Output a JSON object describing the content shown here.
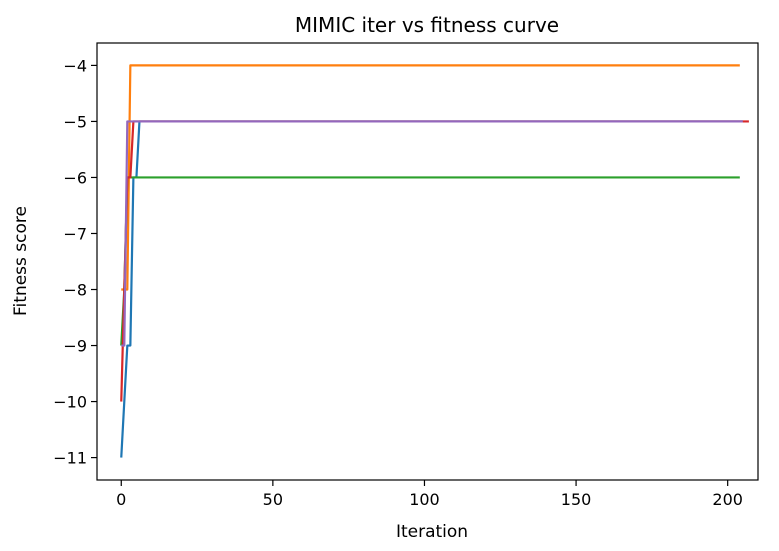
{
  "chart_data": {
    "type": "line",
    "title": "MIMIC iter vs fitness curve",
    "xlabel": "Iteration",
    "ylabel": "Fitness score",
    "xlim": [
      -8,
      210
    ],
    "ylim": [
      -11.4,
      -3.6
    ],
    "xticks": [
      0,
      50,
      100,
      150,
      200
    ],
    "xtick_labels": [
      "0",
      "50",
      "100",
      "150",
      "200"
    ],
    "yticks": [
      -4,
      -5,
      -6,
      -7,
      -8,
      -9,
      -10,
      -11
    ],
    "ytick_labels": [
      "−4",
      "−5",
      "−6",
      "−7",
      "−8",
      "−9",
      "−10",
      "−11"
    ],
    "grid": false,
    "series": [
      {
        "color": "#1f77b4",
        "points": [
          [
            0,
            -11
          ],
          [
            1,
            -10
          ],
          [
            2,
            -9
          ],
          [
            3,
            -9
          ],
          [
            4,
            -6
          ],
          [
            5,
            -6
          ],
          [
            6,
            -5
          ],
          [
            7,
            -5
          ],
          [
            205,
            -5
          ]
        ]
      },
      {
        "color": "#ff7f0e",
        "points": [
          [
            0,
            -8
          ],
          [
            1,
            -8
          ],
          [
            2,
            -8
          ],
          [
            3,
            -4
          ],
          [
            204,
            -4
          ]
        ]
      },
      {
        "color": "#2ca02c",
        "points": [
          [
            0,
            -9
          ],
          [
            1,
            -8
          ],
          [
            2,
            -6
          ],
          [
            204,
            -6
          ]
        ]
      },
      {
        "color": "#d62728",
        "points": [
          [
            0,
            -10
          ],
          [
            1,
            -8
          ],
          [
            2,
            -6
          ],
          [
            3,
            -6
          ],
          [
            4,
            -5
          ],
          [
            207,
            -5
          ]
        ]
      },
      {
        "color": "#9467bd",
        "points": [
          [
            0,
            -9
          ],
          [
            1,
            -9
          ],
          [
            2,
            -5
          ],
          [
            205,
            -5
          ]
        ]
      }
    ]
  }
}
